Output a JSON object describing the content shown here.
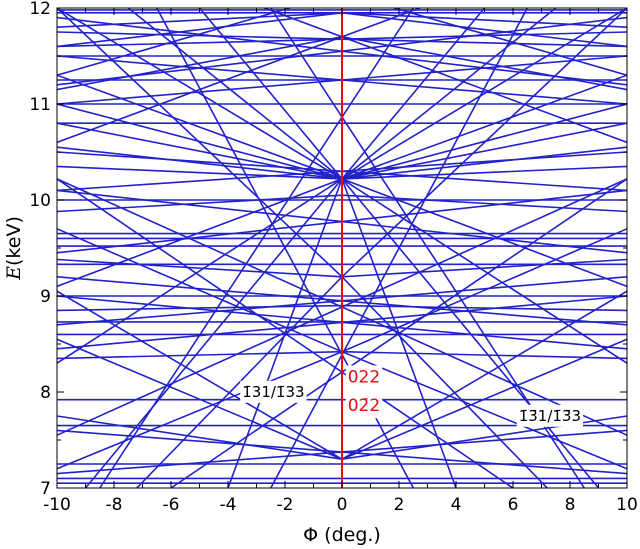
{
  "chart_data": {
    "type": "line",
    "xlabel": "Φ (deg.)",
    "ylabel": "E (keV)",
    "ylabel_var": "E",
    "ylabel_unit": "(keV)",
    "xlim": [
      -10,
      10
    ],
    "ylim": [
      7,
      12
    ],
    "xticks": [
      -10,
      -8,
      -6,
      -4,
      -2,
      0,
      2,
      4,
      6,
      8,
      10
    ],
    "yticks": [
      7,
      8,
      9,
      10,
      11,
      12
    ],
    "xtick_labels": [
      "-10",
      "-8",
      "-6",
      "-4",
      "-2",
      "0",
      "2",
      "4",
      "6",
      "8",
      "10"
    ],
    "ytick_labels": [
      "7",
      "8",
      "9",
      "10",
      "11",
      "12"
    ],
    "grid": false,
    "colors": {
      "lines": "#2222cc",
      "vertical": "#e01010"
    },
    "vertical_line": {
      "x": 0,
      "color": "#e01010"
    },
    "annotations": [
      {
        "id": "left",
        "text": "1̄31/1̄33",
        "x": -3.5,
        "y": 7.95
      },
      {
        "id": "right",
        "text": "1̄3̄1/1̄3̄3",
        "x": 6.2,
        "y": 7.7
      },
      {
        "id": "red1",
        "text": "022",
        "x": 0.2,
        "y": 8.1
      },
      {
        "id": "red2",
        "text": "02̄2",
        "x": 0.2,
        "y": 7.8
      }
    ],
    "series": [
      {
        "values": [
          [
            -10,
            7.05
          ],
          [
            10,
            7.05
          ]
        ]
      },
      {
        "values": [
          [
            -10,
            7.1
          ],
          [
            10,
            7.1
          ]
        ]
      },
      {
        "values": [
          [
            -10,
            7.25
          ],
          [
            10,
            7.25
          ]
        ]
      },
      {
        "values": [
          [
            -10,
            7.65
          ],
          [
            10,
            7.65
          ]
        ]
      },
      {
        "values": [
          [
            -10,
            7.92
          ],
          [
            10,
            7.92
          ]
        ]
      },
      {
        "values": [
          [
            -10,
            8.6
          ],
          [
            10,
            8.6
          ]
        ]
      },
      {
        "values": [
          [
            -10,
            8.73
          ],
          [
            10,
            8.73
          ]
        ]
      },
      {
        "values": [
          [
            -10,
            9.0
          ],
          [
            10,
            9.0
          ]
        ]
      },
      {
        "values": [
          [
            -10,
            9.33
          ],
          [
            10,
            9.33
          ]
        ]
      },
      {
        "values": [
          [
            -10,
            9.52
          ],
          [
            10,
            9.52
          ]
        ]
      },
      {
        "values": [
          [
            -10,
            9.6
          ],
          [
            10,
            9.6
          ]
        ]
      },
      {
        "values": [
          [
            -10,
            9.65
          ],
          [
            10,
            9.65
          ]
        ]
      },
      {
        "values": [
          [
            -10,
            10.0
          ],
          [
            10,
            10.0
          ]
        ]
      },
      {
        "values": [
          [
            -10,
            10.8
          ],
          [
            10,
            10.8
          ]
        ]
      },
      {
        "values": [
          [
            -10,
            11.0
          ],
          [
            10,
            11.0
          ]
        ]
      },
      {
        "values": [
          [
            -10,
            11.25
          ],
          [
            10,
            11.25
          ]
        ]
      },
      {
        "values": [
          [
            -10,
            11.5
          ],
          [
            10,
            11.5
          ]
        ]
      },
      {
        "values": [
          [
            -10,
            11.95
          ],
          [
            10,
            11.95
          ]
        ]
      },
      {
        "values": [
          [
            -10,
            11.98
          ],
          [
            10,
            11.98
          ]
        ]
      },
      {
        "values": [
          [
            -10,
            7.75
          ],
          [
            0,
            7.3
          ],
          [
            10,
            7.75
          ]
        ]
      },
      {
        "values": [
          [
            -10,
            8.35
          ],
          [
            0,
            8.42
          ],
          [
            10,
            8.35
          ]
        ]
      },
      {
        "values": [
          [
            -10,
            8.85
          ],
          [
            0,
            8.9
          ],
          [
            10,
            8.85
          ]
        ]
      },
      {
        "values": [
          [
            -10,
            9.38
          ],
          [
            0,
            9.2
          ],
          [
            10,
            9.38
          ]
        ]
      },
      {
        "values": [
          [
            -10,
            9.88
          ],
          [
            0,
            10.05
          ],
          [
            10,
            9.88
          ]
        ]
      },
      {
        "values": [
          [
            -10,
            10.35
          ],
          [
            0,
            10.22
          ],
          [
            10,
            10.35
          ]
        ]
      },
      {
        "values": [
          [
            -10,
            10.55
          ],
          [
            0,
            10.22
          ],
          [
            10,
            10.55
          ]
        ]
      },
      {
        "values": [
          [
            -10,
            10.8
          ],
          [
            0,
            10.22
          ],
          [
            10,
            10.8
          ]
        ]
      },
      {
        "values": [
          [
            -10,
            11.3
          ],
          [
            0,
            10.22
          ],
          [
            10,
            11.3
          ]
        ]
      },
      {
        "values": [
          [
            -10,
            12.0
          ],
          [
            0,
            10.22
          ],
          [
            10,
            12.0
          ]
        ]
      },
      {
        "values": [
          [
            -10,
            11.15
          ],
          [
            0,
            11.7
          ],
          [
            10,
            11.15
          ]
        ]
      },
      {
        "values": [
          [
            -10,
            11.6
          ],
          [
            0,
            11.95
          ],
          [
            10,
            11.6
          ]
        ]
      },
      {
        "values": [
          [
            -10,
            11.8
          ],
          [
            0,
            11.95
          ],
          [
            10,
            11.8
          ]
        ]
      },
      {
        "values": [
          [
            -10,
            7.15
          ],
          [
            10,
            7.6
          ]
        ]
      },
      {
        "values": [
          [
            -10,
            7.6
          ],
          [
            10,
            7.15
          ]
        ]
      },
      {
        "values": [
          [
            -10,
            8.45
          ],
          [
            10,
            9.0
          ]
        ]
      },
      {
        "values": [
          [
            -10,
            9.0
          ],
          [
            10,
            8.45
          ]
        ]
      },
      {
        "values": [
          [
            -10,
            9.2
          ],
          [
            10,
            8.7
          ]
        ]
      },
      {
        "values": [
          [
            -10,
            8.7
          ],
          [
            10,
            9.2
          ]
        ]
      },
      {
        "values": [
          [
            -10,
            10.1
          ],
          [
            10,
            10.5
          ]
        ]
      },
      {
        "values": [
          [
            -10,
            10.5
          ],
          [
            10,
            10.1
          ]
        ]
      },
      {
        "values": [
          [
            -10,
            11.5
          ],
          [
            10,
            11.0
          ]
        ]
      },
      {
        "values": [
          [
            -10,
            11.0
          ],
          [
            10,
            11.5
          ]
        ]
      },
      {
        "values": [
          [
            -10,
            11.75
          ],
          [
            10,
            11.6
          ]
        ]
      },
      {
        "values": [
          [
            -10,
            11.6
          ],
          [
            10,
            11.75
          ]
        ]
      },
      {
        "values": [
          [
            -10,
            10.22
          ],
          [
            10,
            7.55
          ]
        ]
      },
      {
        "values": [
          [
            -10,
            7.55
          ],
          [
            10,
            10.22
          ]
        ]
      },
      {
        "values": [
          [
            -10,
            10.22
          ],
          [
            6,
            7.0
          ]
        ]
      },
      {
        "values": [
          [
            -6,
            7.0
          ],
          [
            10,
            10.22
          ]
        ]
      },
      {
        "values": [
          [
            -10,
            9.7
          ],
          [
            0,
            8.42
          ],
          [
            10,
            7.2
          ]
        ]
      },
      {
        "values": [
          [
            -10,
            7.2
          ],
          [
            0,
            8.42
          ],
          [
            10,
            9.7
          ]
        ]
      },
      {
        "values": [
          [
            -10,
            12.0
          ],
          [
            0,
            9.2
          ],
          [
            7.2,
            7.0
          ]
        ]
      },
      {
        "values": [
          [
            -7.2,
            7.0
          ],
          [
            0,
            9.2
          ],
          [
            10,
            12.0
          ]
        ]
      },
      {
        "values": [
          [
            -10,
            8.55
          ],
          [
            0,
            7.3
          ],
          [
            10,
            8.55
          ]
        ]
      },
      {
        "values": [
          [
            -10,
            9.05
          ],
          [
            0,
            7.3
          ],
          [
            10,
            9.05
          ]
        ]
      },
      {
        "values": [
          [
            -7.5,
            12.0
          ],
          [
            0,
            10.22
          ],
          [
            7.5,
            12.0
          ]
        ]
      },
      {
        "values": [
          [
            -5.0,
            12.0
          ],
          [
            0,
            10.22
          ],
          [
            5.0,
            12.0
          ]
        ]
      },
      {
        "values": [
          [
            -4.0,
            7.0
          ],
          [
            0,
            10.22
          ],
          [
            4.0,
            7.0
          ]
        ]
      },
      {
        "values": [
          [
            -9.0,
            7.0
          ],
          [
            0,
            10.22
          ],
          [
            9.0,
            7.0
          ]
        ]
      },
      {
        "values": [
          [
            -10,
            8.3
          ],
          [
            0,
            10.22
          ],
          [
            10,
            8.3
          ]
        ]
      },
      {
        "values": [
          [
            -10,
            9.1
          ],
          [
            0,
            10.22
          ],
          [
            10,
            9.1
          ]
        ]
      },
      {
        "values": [
          [
            -10,
            11.0
          ],
          [
            0,
            10.22
          ],
          [
            10,
            11.0
          ]
        ]
      },
      {
        "values": [
          [
            -10,
            10.6
          ],
          [
            10,
            12.8
          ]
        ]
      },
      {
        "values": [
          [
            -10,
            12.8
          ],
          [
            10,
            10.6
          ]
        ]
      },
      {
        "values": [
          [
            -10,
            11.3
          ],
          [
            4,
            12.5
          ]
        ]
      },
      {
        "values": [
          [
            -4,
            12.5
          ],
          [
            10,
            11.3
          ]
        ]
      },
      {
        "values": [
          [
            -10,
            11.9
          ],
          [
            10,
            11.2
          ]
        ]
      },
      {
        "values": [
          [
            -10,
            11.2
          ],
          [
            10,
            11.9
          ]
        ]
      },
      {
        "values": [
          [
            -6.5,
            12.0
          ],
          [
            2.5,
            7.0
          ]
        ]
      },
      {
        "values": [
          [
            -2.5,
            7.0
          ],
          [
            6.5,
            12.0
          ]
        ]
      },
      {
        "values": [
          [
            -2.5,
            12.0
          ],
          [
            8.5,
            7.0
          ]
        ]
      },
      {
        "values": [
          [
            -8.5,
            7.0
          ],
          [
            2.5,
            12.0
          ]
        ]
      },
      {
        "values": [
          [
            -10,
            9.45
          ],
          [
            10,
            10.1
          ]
        ]
      },
      {
        "values": [
          [
            -10,
            10.1
          ],
          [
            10,
            9.45
          ]
        ]
      }
    ]
  }
}
